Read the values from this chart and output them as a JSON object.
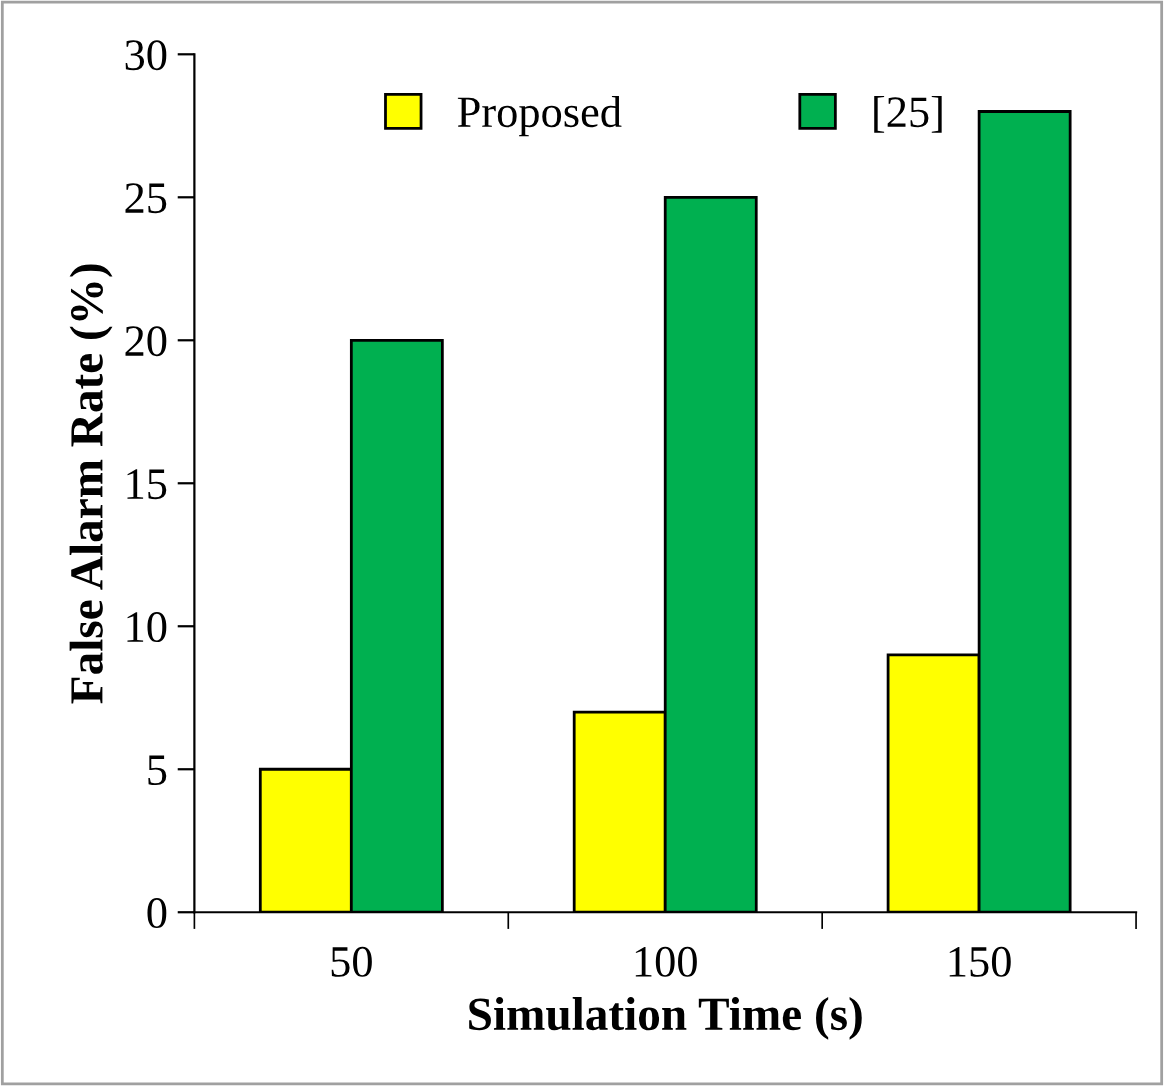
{
  "chart_data": {
    "type": "bar",
    "xlabel": "Simulation Time (s)",
    "ylabel": "False Alarm Rate (%)",
    "categories": [
      "50",
      "100",
      "150"
    ],
    "series": [
      {
        "name": "Proposed",
        "color": "#ffff00",
        "values": [
          5,
          7,
          9
        ]
      },
      {
        "name": "[25]",
        "color": "#00b050",
        "values": [
          20,
          25,
          28
        ]
      }
    ],
    "ylim": [
      0,
      30
    ],
    "yticks": [
      0,
      5,
      10,
      15,
      20,
      25,
      30
    ],
    "grid": false,
    "legend": "top"
  }
}
